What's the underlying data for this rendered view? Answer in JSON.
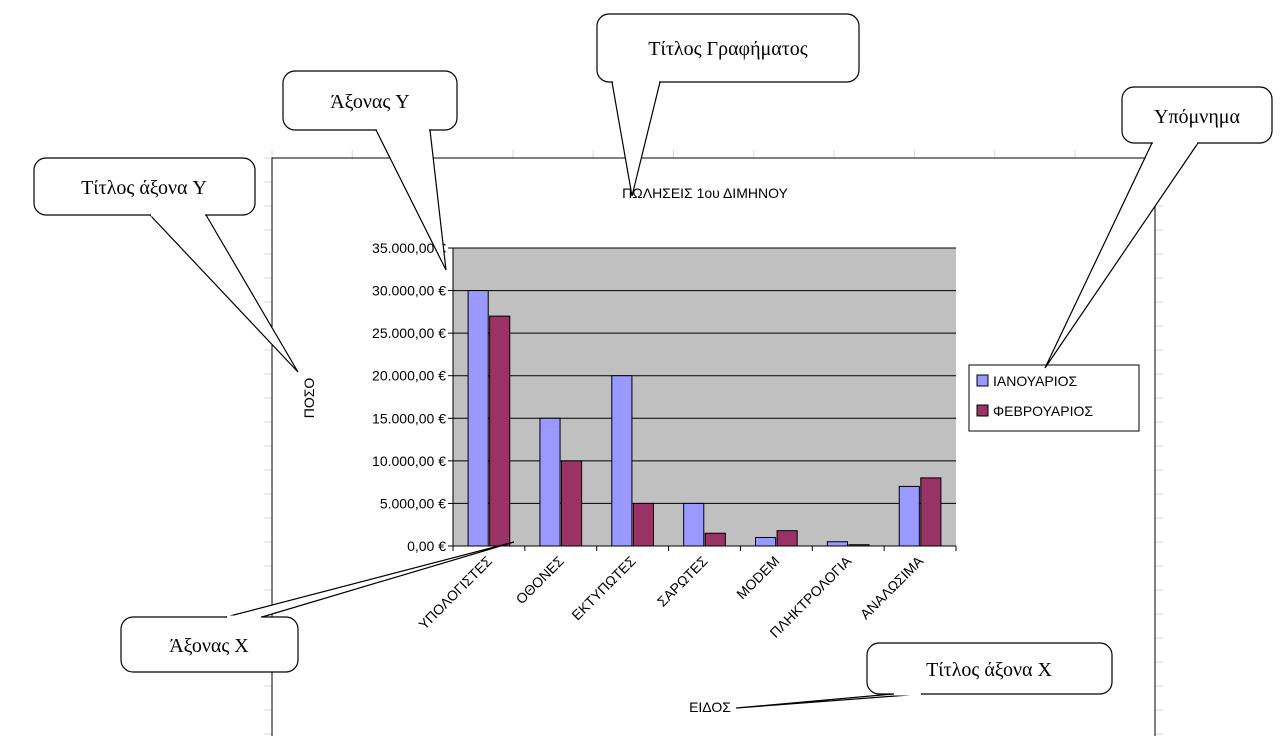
{
  "chart_data": {
    "type": "bar",
    "title": "ΠΩΛΗΣΕΙΣ 1ου ΔΙΜΗΝΟΥ",
    "xlabel": "ΕΙΔΟΣ",
    "ylabel": "ΠΟΣΟ",
    "categories": [
      "ΥΠΟΛΟΓΙΣΤΕΣ",
      "ΟΘΟΝΕΣ",
      "ΕΚΤΥΠΩΤΕΣ",
      "ΣΑΡΩΤΕΣ",
      "MODEM",
      "ΠΛΗΚΤΡΟΛΟΓΙΑ",
      "ΑΝΑΛΩΣΙΜΑ"
    ],
    "series": [
      {
        "name": "ΙΑΝΟΥΑΡΙΟΣ",
        "color": "#9999ff",
        "values": [
          30000,
          15000,
          20000,
          5000,
          1000,
          500,
          7000
        ]
      },
      {
        "name": "ΦΕΒΡΟΥΑΡΙΟΣ",
        "color": "#993366",
        "values": [
          27000,
          10000,
          5000,
          1500,
          1800,
          150,
          8000
        ]
      }
    ],
    "ylim": [
      0,
      35000
    ],
    "yticks": [
      0,
      5000,
      10000,
      15000,
      20000,
      25000,
      30000,
      35000
    ],
    "ytick_labels": [
      "0,00 €",
      "5.000,00 €",
      "10.000,00 €",
      "15.000,00 €",
      "20.000,00 €",
      "25.000,00 €",
      "30.000,00 €",
      "35.000,00 €"
    ],
    "grid": true,
    "legend_position": "right",
    "plot_background": "#c0c0c0"
  },
  "callouts": {
    "chart_title": "Τίτλος Γραφήματος",
    "y_axis": "Άξονας Y",
    "y_axis_title": "Τίτλος άξονα Y",
    "legend": "Υπόμνημα",
    "x_axis": "Άξονας Χ",
    "x_axis_title": "Τίτλος άξονα Χ"
  }
}
